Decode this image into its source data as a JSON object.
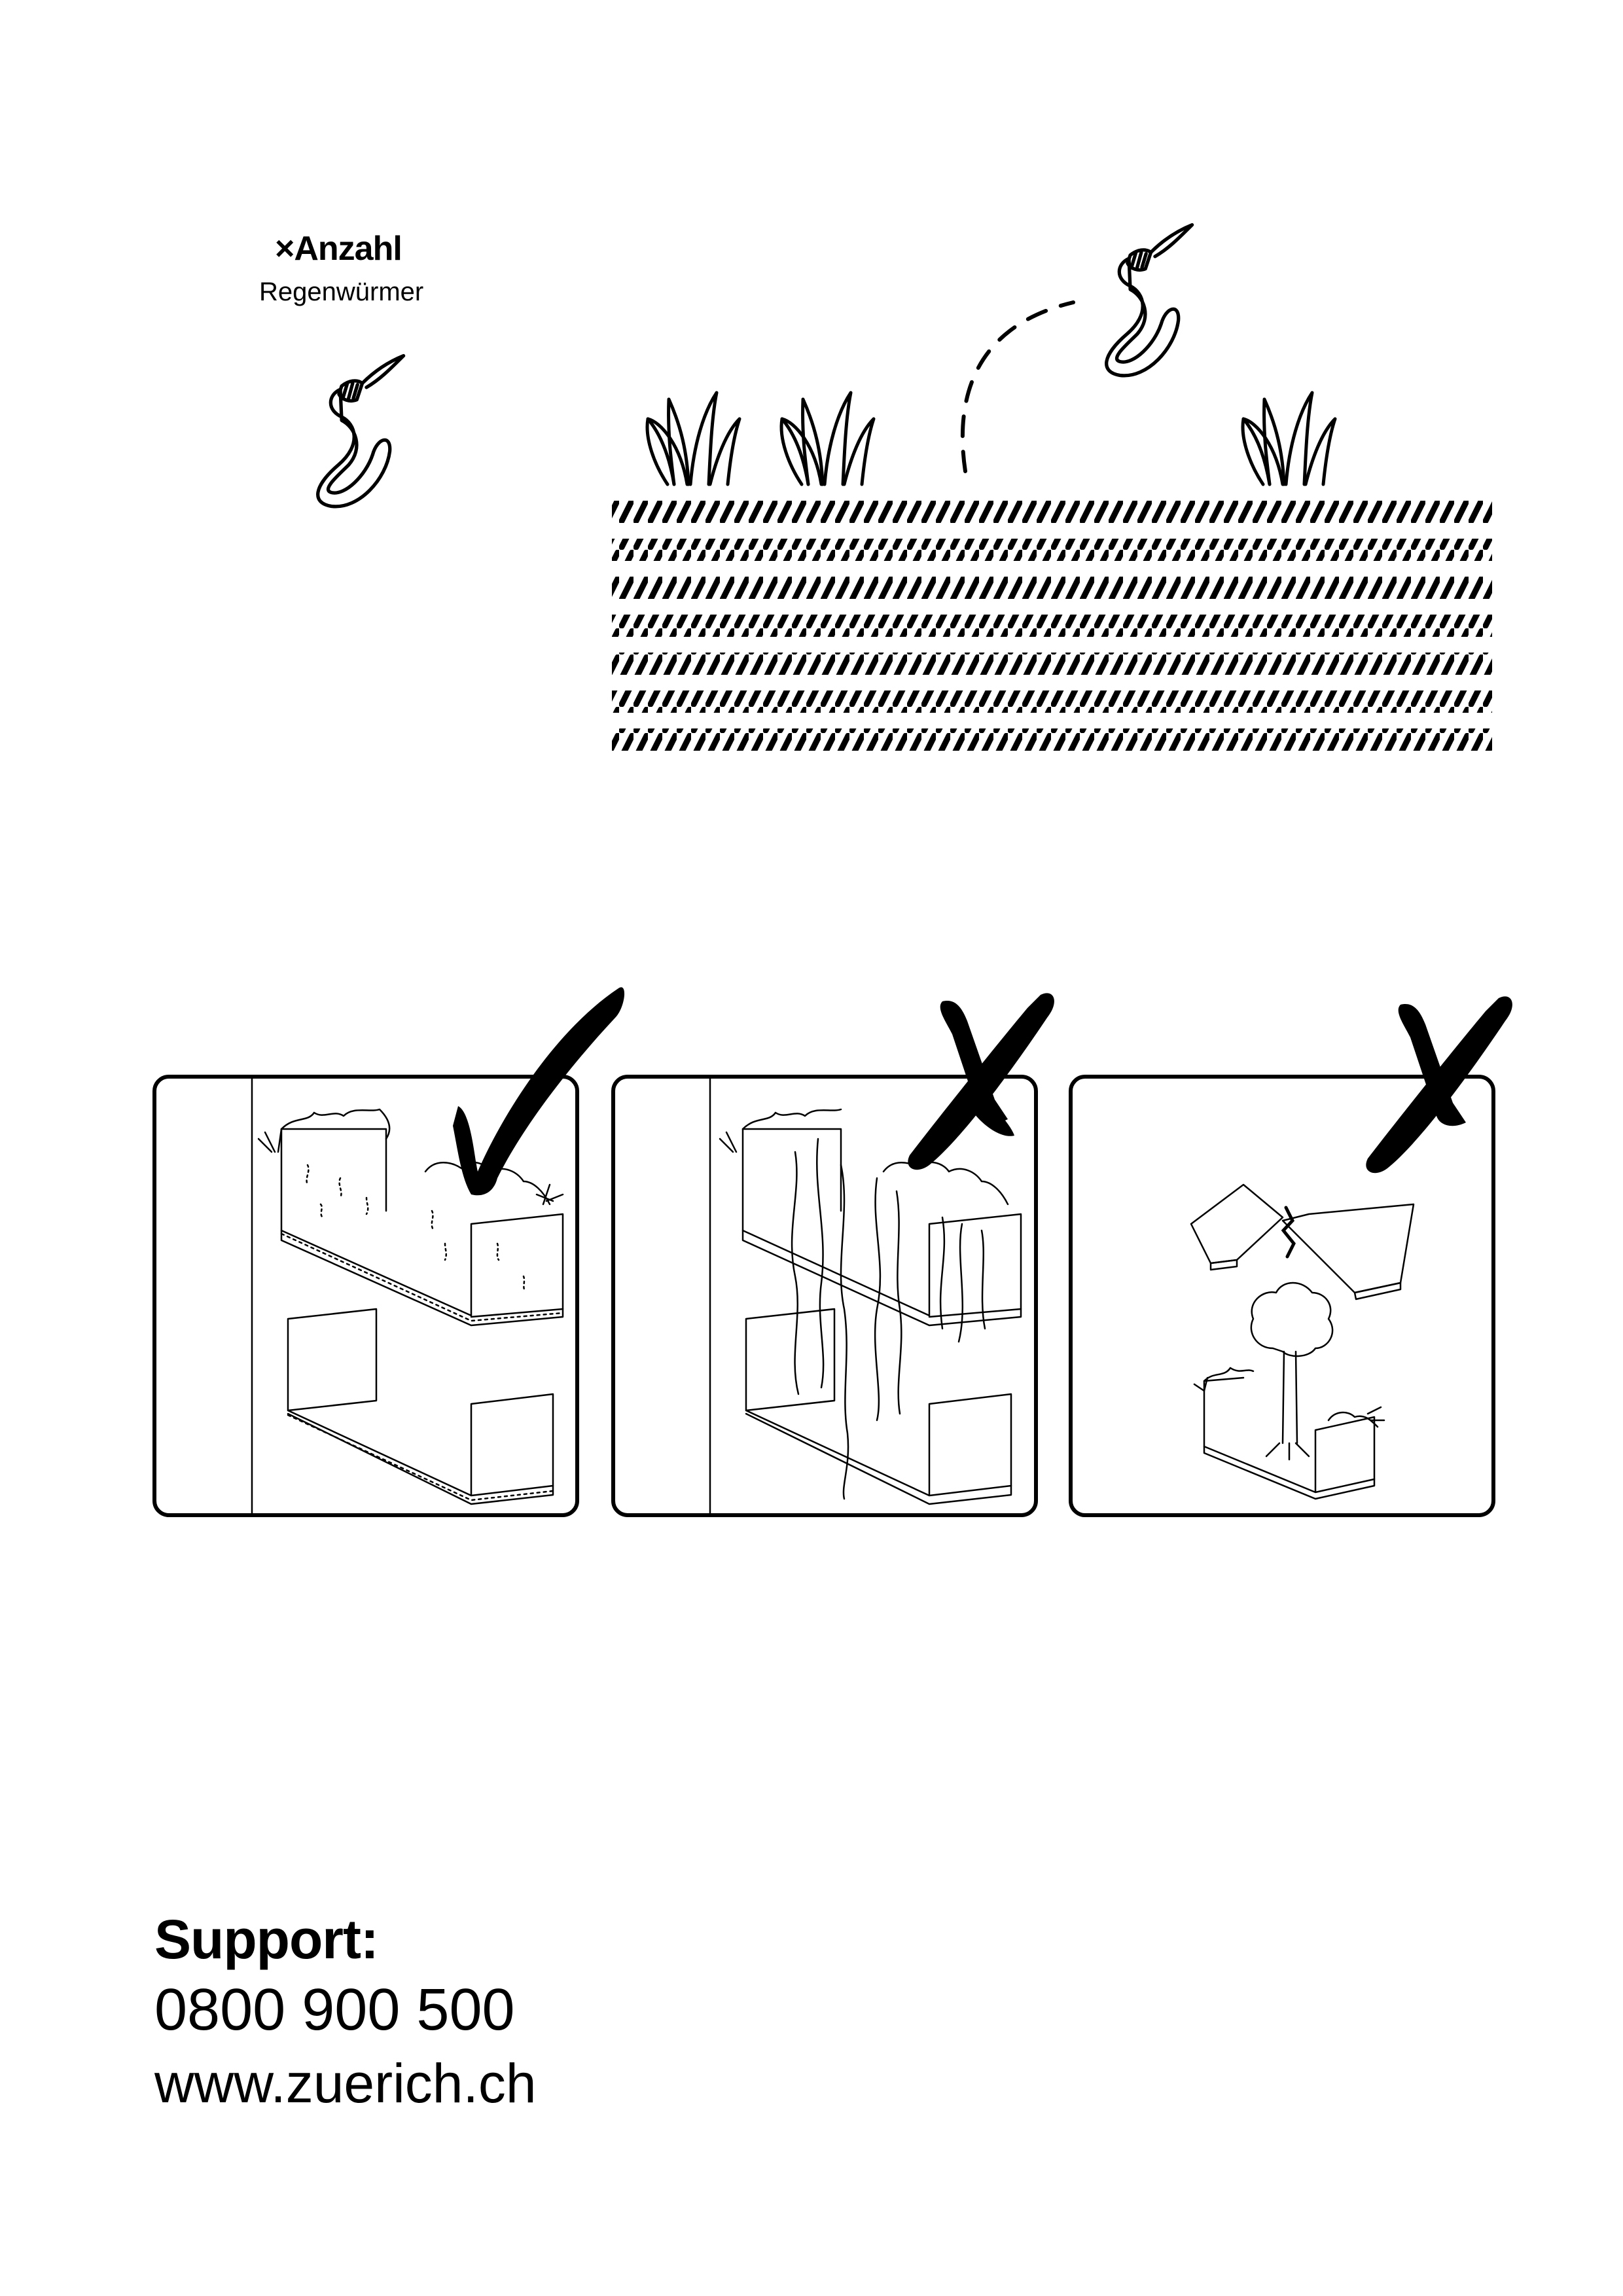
{
  "counter": {
    "title": "×Anzahl",
    "subtitle": "Regenwürmer",
    "icon": "earthworm-icon"
  },
  "scene": {
    "icons": [
      "earthworm-icon",
      "grass-icon",
      "soil-layers"
    ]
  },
  "panels": [
    {
      "verdict": "correct",
      "icon": "checkmark-icon",
      "content": "planter-boxes-on-wall"
    },
    {
      "verdict": "wrong",
      "icon": "cross-icon",
      "content": "planter-boxes-with-roots"
    },
    {
      "verdict": "wrong",
      "icon": "cross-icon",
      "content": "broken-planter-with-tree"
    }
  ],
  "support": {
    "title": "Support:",
    "phone": "0800 900 500",
    "url": "www.zuerich.ch"
  }
}
